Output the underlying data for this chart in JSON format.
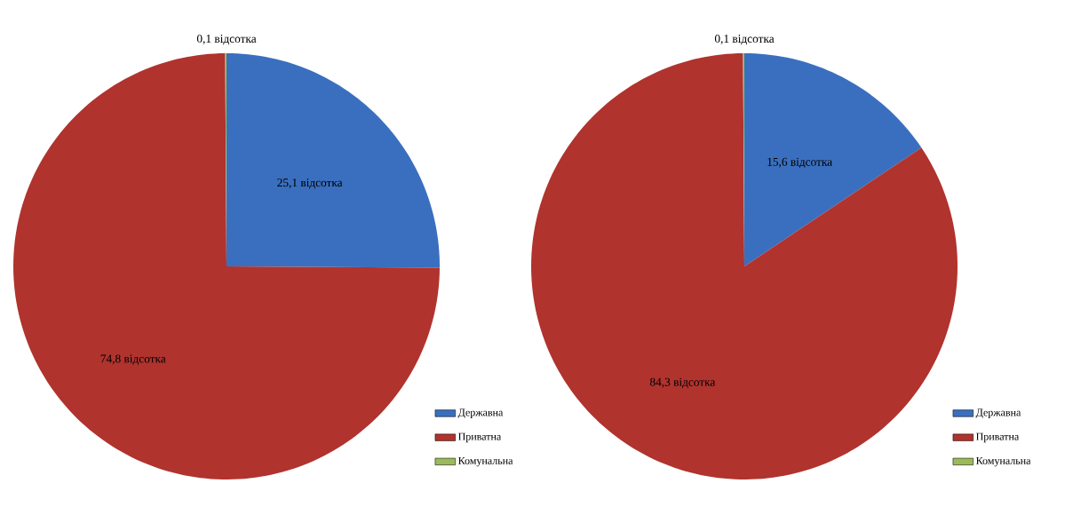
{
  "chart_data": [
    {
      "type": "pie",
      "categories": [
        "Державна",
        "Приватна",
        "Комунальна"
      ],
      "values": [
        25.1,
        74.8,
        0.1
      ],
      "colors": [
        "#3a6fbf",
        "#b0332e",
        "#9bbb59"
      ],
      "value_labels": [
        "25,1 відсотка",
        "74,8 відсотка",
        "0,1 відсотка"
      ],
      "legend": "bottom right"
    },
    {
      "type": "pie",
      "categories": [
        "Державна",
        "Приватна",
        "Комунальна"
      ],
      "values": [
        15.6,
        84.3,
        0.1
      ],
      "colors": [
        "#3a6fbf",
        "#b0332e",
        "#9bbb59"
      ],
      "value_labels": [
        "15,6 відсотка",
        "84,3 відсотка",
        "0,1 відсотка"
      ],
      "legend": "bottom right"
    }
  ]
}
